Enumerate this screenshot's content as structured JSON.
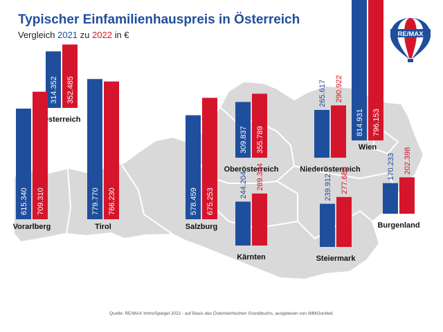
{
  "title": "Typischer Einfamilienhauspreis in Österreich",
  "subtitle": {
    "prefix": "Vergleich",
    "year1": "2021",
    "middle": "zu",
    "year2": "2022",
    "suffix": "in €"
  },
  "logo_text": "RE/MAX",
  "source": "Quelle: RE/MAX ImmoSpiegel 2022 - auf Basis des Österreichischen Grundbuchs, ausgelesen von IMMOunited.",
  "colors": {
    "blue": "#1f4e9c",
    "red": "#d5152b",
    "map": "#d9d9d9",
    "title": "#1f4e9c"
  },
  "chart_data": {
    "type": "bar",
    "title": "Typischer Einfamilienhauspreis in Österreich",
    "subtitle": "Vergleich 2021 zu 2022 in €",
    "unit": "€",
    "series": [
      {
        "name": "2021",
        "color": "#1f4e9c"
      },
      {
        "name": "2022",
        "color": "#d5152b"
      }
    ],
    "regions": [
      {
        "name": "Österreich",
        "v2021": 314352,
        "v2022": 352485,
        "l2021": "314.352",
        "l2022": "352.485"
      },
      {
        "name": "Vorarlberg",
        "v2021": 615340,
        "v2022": 709310,
        "l2021": "615.340",
        "l2022": "709.310"
      },
      {
        "name": "Tirol",
        "v2021": 779770,
        "v2022": 766230,
        "l2021": "779.770",
        "l2022": "766.230"
      },
      {
        "name": "Salzburg",
        "v2021": 578459,
        "v2022": 675253,
        "l2021": "578.459",
        "l2022": "675.253"
      },
      {
        "name": "Oberösterreich",
        "v2021": 309837,
        "v2022": 355789,
        "l2021": "309.837",
        "l2022": "355.789"
      },
      {
        "name": "Kärnten",
        "v2021": 244204,
        "v2022": 289344,
        "l2021": "244.204",
        "l2022": "289.344"
      },
      {
        "name": "Niederösterreich",
        "v2021": 265617,
        "v2022": 290922,
        "l2021": "265.617",
        "l2022": "290.922"
      },
      {
        "name": "Steiermark",
        "v2021": 239912,
        "v2022": 277688,
        "l2021": "239.912",
        "l2022": "277.688"
      },
      {
        "name": "Wien",
        "v2021": 814931,
        "v2022": 796153,
        "l2021": "814.931",
        "l2022": "796.153"
      },
      {
        "name": "Burgenland",
        "v2021": 170233,
        "v2022": 202398,
        "l2021": "170.233",
        "l2022": "202.398"
      }
    ]
  }
}
